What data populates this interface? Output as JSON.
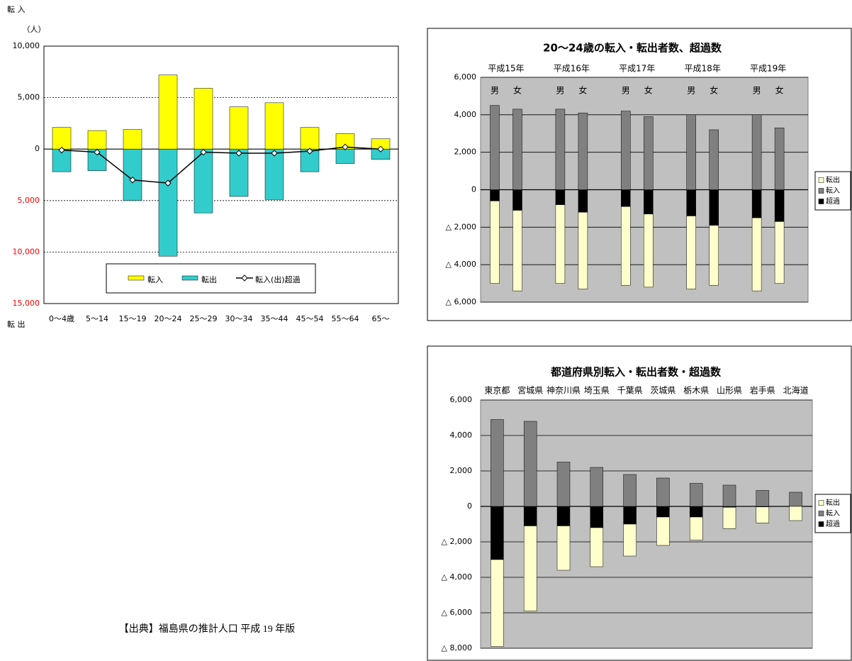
{
  "chart_data": [
    {
      "type": "bar",
      "top_label": "転 入",
      "bottom_label": "転 出",
      "unit_label": "（人）",
      "categories": [
        "0～4歳",
        "5～14",
        "15～19",
        "20～24",
        "25～29",
        "30～34",
        "35～44",
        "45～54",
        "55～64",
        "65～"
      ],
      "series": [
        {
          "name": "転入",
          "color": "#ffff00",
          "values": [
            2100,
            1800,
            1900,
            7200,
            5900,
            4100,
            4500,
            2100,
            1500,
            1000
          ]
        },
        {
          "name": "転出",
          "color": "#33cccc",
          "values": [
            -2200,
            -2100,
            -5000,
            -10400,
            -6200,
            -4600,
            -4900,
            -2200,
            -1400,
            -1000
          ]
        },
        {
          "name": "転入(出)超過",
          "type": "line",
          "color": "#000000",
          "values": [
            -100,
            -300,
            -3000,
            -3300,
            -300,
            -400,
            -400,
            -200,
            200,
            0
          ]
        }
      ],
      "ylim": [
        -15000,
        10000
      ],
      "yticks": [
        {
          "value": 10000,
          "label": "10,000"
        },
        {
          "value": 5000,
          "label": "5,000"
        },
        0,
        {
          "value": -5000,
          "label": "5,000"
        },
        {
          "value": -10000,
          "label": "10,000"
        },
        {
          "value": -15000,
          "label": "15,000"
        }
      ],
      "negative_tick_color": "#ff0000",
      "grid": true
    },
    {
      "type": "stacked_bar",
      "title": "20～24歳の転入・転出者数、超過数",
      "groups": [
        "平成15年",
        "平成16年",
        "平成17年",
        "平成18年",
        "平成19年"
      ],
      "categories": [
        "男",
        "女",
        "男",
        "女",
        "男",
        "女",
        "男",
        "女",
        "男",
        "女"
      ],
      "series": [
        {
          "name": "転出",
          "color": "#ffffcc",
          "values": [
            -4400,
            -4300,
            -4200,
            -4100,
            -4200,
            -3900,
            -3900,
            -3200,
            -3900,
            -3300
          ]
        },
        {
          "name": "転入",
          "color": "#808080",
          "values": [
            4500,
            4300,
            4300,
            4100,
            4200,
            3900,
            4000,
            3200,
            4000,
            3300
          ]
        },
        {
          "name": "超過",
          "color": "#000000",
          "values": [
            -600,
            -1100,
            -800,
            -1200,
            -900,
            -1300,
            -1400,
            -1900,
            -1500,
            -1700
          ]
        }
      ],
      "ylim": [
        -6000,
        6000
      ],
      "yticks": [
        {
          "value": 6000,
          "label": "6,000"
        },
        {
          "value": 4000,
          "label": "4,000"
        },
        {
          "value": 2000,
          "label": "2,000"
        },
        0,
        {
          "value": -2000,
          "label": "△ 2,000"
        },
        {
          "value": -4000,
          "label": "△ 4,000"
        },
        {
          "value": -6000,
          "label": "△ 6,000"
        }
      ],
      "grid": true
    },
    {
      "type": "stacked_bar",
      "title": "都道府県別転入・転出者数・超過数",
      "categories": [
        "東京都",
        "宮城県",
        "神奈川県",
        "埼玉県",
        "千葉県",
        "茨城県",
        "栃木県",
        "山形県",
        "岩手県",
        "北海道"
      ],
      "series": [
        {
          "name": "転出",
          "color": "#ffffcc",
          "values": [
            -4900,
            -4800,
            -2500,
            -2200,
            -1800,
            -1600,
            -1300,
            -1200,
            -900,
            -800
          ]
        },
        {
          "name": "転入",
          "color": "#808080",
          "values": [
            4900,
            4800,
            2500,
            2200,
            1800,
            1600,
            1300,
            1200,
            900,
            800
          ]
        },
        {
          "name": "超過",
          "color": "#000000",
          "values": [
            -3000,
            -1100,
            -1100,
            -1200,
            -1000,
            -600,
            -600,
            -50,
            -30,
            0
          ]
        }
      ],
      "ylim": [
        -8000,
        6000
      ],
      "yticks": [
        {
          "value": 6000,
          "label": "6,000"
        },
        {
          "value": 4000,
          "label": "4,000"
        },
        {
          "value": 2000,
          "label": "2,000"
        },
        0,
        {
          "value": -2000,
          "label": "△ 2,000"
        },
        {
          "value": -4000,
          "label": "△ 4,000"
        },
        {
          "value": -6000,
          "label": "△ 6,000"
        },
        {
          "value": -8000,
          "label": "△ 8,000"
        }
      ],
      "grid": true
    }
  ],
  "source": "【出典】福島県の推計人口 平成 19 年版"
}
